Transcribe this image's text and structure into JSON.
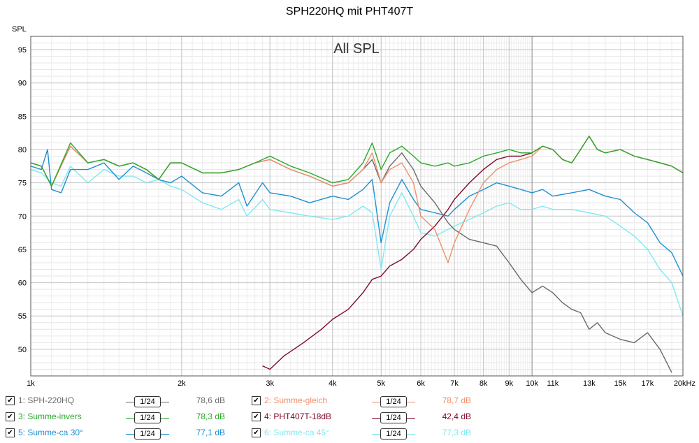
{
  "chart_data": {
    "type": "line",
    "title": "SPH220HQ mit PHT407T",
    "annotation": "All SPL",
    "ylabel": "SPL",
    "xlabel": "",
    "x_scale": "log",
    "xlim": [
      1000,
      20000
    ],
    "ylim": [
      46,
      97
    ],
    "grid": true,
    "y_ticks": [
      95,
      90,
      85,
      80,
      75,
      70,
      65,
      60,
      55,
      50
    ],
    "x_ticks": [
      {
        "v": 1000,
        "label": "1k"
      },
      {
        "v": 2000,
        "label": "2k"
      },
      {
        "v": 3000,
        "label": "3k"
      },
      {
        "v": 4000,
        "label": "4k"
      },
      {
        "v": 5000,
        "label": "5k"
      },
      {
        "v": 6000,
        "label": "6k"
      },
      {
        "v": 7000,
        "label": "7k"
      },
      {
        "v": 8000,
        "label": "8k"
      },
      {
        "v": 9000,
        "label": "9k"
      },
      {
        "v": 10000,
        "label": "10k"
      },
      {
        "v": 11000,
        "label": "11k"
      },
      {
        "v": 13000,
        "label": "13k"
      },
      {
        "v": 15000,
        "label": "15k"
      },
      {
        "v": 17000,
        "label": "17k"
      },
      {
        "v": 20000,
        "label": "20kHz"
      }
    ],
    "series": [
      {
        "name": "1: SPH-220HQ",
        "color": "#6a6a6a",
        "legend_value": "78,6 dB",
        "smoothing": "1/24",
        "points": [
          [
            1000,
            78
          ],
          [
            1050,
            77.5
          ],
          [
            1100,
            74.5
          ],
          [
            1200,
            80.5
          ],
          [
            1300,
            78
          ],
          [
            1400,
            78.5
          ],
          [
            1500,
            77.5
          ],
          [
            1600,
            78
          ],
          [
            1700,
            77
          ],
          [
            1800,
            75.5
          ],
          [
            1900,
            78
          ],
          [
            2000,
            78
          ],
          [
            2200,
            76.5
          ],
          [
            2400,
            76.5
          ],
          [
            2600,
            77
          ],
          [
            2800,
            78
          ],
          [
            3000,
            78.5
          ],
          [
            3300,
            77
          ],
          [
            3600,
            76
          ],
          [
            4000,
            74.5
          ],
          [
            4300,
            75
          ],
          [
            4600,
            77
          ],
          [
            4800,
            78.5
          ],
          [
            5000,
            75
          ],
          [
            5200,
            77.5
          ],
          [
            5500,
            79.5
          ],
          [
            5800,
            77
          ],
          [
            6000,
            74.5
          ],
          [
            6400,
            72
          ],
          [
            6800,
            69
          ],
          [
            7000,
            68
          ],
          [
            7500,
            66.5
          ],
          [
            8000,
            66
          ],
          [
            8500,
            65.5
          ],
          [
            9000,
            63
          ],
          [
            9500,
            60.5
          ],
          [
            10000,
            58.5
          ],
          [
            10500,
            59.5
          ],
          [
            11000,
            58.5
          ],
          [
            11500,
            57
          ],
          [
            12000,
            56
          ],
          [
            12500,
            55.5
          ],
          [
            13000,
            53
          ],
          [
            13500,
            54
          ],
          [
            14000,
            52.5
          ],
          [
            15000,
            51.5
          ],
          [
            16000,
            51
          ],
          [
            17000,
            52.5
          ],
          [
            18000,
            50
          ],
          [
            19000,
            46.5
          ]
        ]
      },
      {
        "name": "2: Summe-gleich",
        "color": "#f0906a",
        "legend_value": "78,7 dB",
        "smoothing": "1/24",
        "points": [
          [
            1000,
            78
          ],
          [
            1050,
            77.5
          ],
          [
            1100,
            74.5
          ],
          [
            1200,
            80.5
          ],
          [
            1300,
            78
          ],
          [
            1400,
            78.5
          ],
          [
            1500,
            77.5
          ],
          [
            1600,
            78
          ],
          [
            1700,
            77
          ],
          [
            1800,
            75.5
          ],
          [
            1900,
            78
          ],
          [
            2000,
            78
          ],
          [
            2200,
            76.5
          ],
          [
            2400,
            76.5
          ],
          [
            2600,
            77
          ],
          [
            2800,
            78
          ],
          [
            3000,
            78.5
          ],
          [
            3300,
            77
          ],
          [
            3600,
            76
          ],
          [
            4000,
            74.5
          ],
          [
            4300,
            75
          ],
          [
            4600,
            77
          ],
          [
            4800,
            79.5
          ],
          [
            5000,
            75
          ],
          [
            5200,
            77
          ],
          [
            5500,
            78
          ],
          [
            5800,
            75
          ],
          [
            6000,
            70
          ],
          [
            6400,
            68
          ],
          [
            6800,
            63
          ],
          [
            7000,
            66
          ],
          [
            7500,
            71
          ],
          [
            8000,
            75
          ],
          [
            8500,
            77
          ],
          [
            9000,
            78
          ],
          [
            9500,
            78.5
          ],
          [
            10000,
            79
          ],
          [
            10500,
            80.5
          ],
          [
            11000,
            80
          ],
          [
            11500,
            78.5
          ],
          [
            12000,
            78
          ],
          [
            12500,
            80
          ],
          [
            13000,
            82
          ],
          [
            13500,
            80
          ],
          [
            14000,
            79.5
          ],
          [
            15000,
            80
          ],
          [
            16000,
            79
          ],
          [
            17000,
            78.5
          ],
          [
            18000,
            78
          ],
          [
            19000,
            77.5
          ],
          [
            20000,
            76.5
          ]
        ]
      },
      {
        "name": "3: Summe-invers",
        "color": "#2aaa2a",
        "legend_value": "78,3 dB",
        "smoothing": "1/24",
        "points": [
          [
            1000,
            78
          ],
          [
            1050,
            77.5
          ],
          [
            1100,
            74.5
          ],
          [
            1200,
            81
          ],
          [
            1300,
            78
          ],
          [
            1400,
            78.5
          ],
          [
            1500,
            77.5
          ],
          [
            1600,
            78
          ],
          [
            1700,
            77
          ],
          [
            1800,
            75.5
          ],
          [
            1900,
            78
          ],
          [
            2000,
            78
          ],
          [
            2200,
            76.5
          ],
          [
            2400,
            76.5
          ],
          [
            2600,
            77
          ],
          [
            2800,
            78
          ],
          [
            3000,
            79
          ],
          [
            3300,
            77.5
          ],
          [
            3600,
            76.5
          ],
          [
            4000,
            75
          ],
          [
            4300,
            75.5
          ],
          [
            4600,
            78
          ],
          [
            4800,
            81
          ],
          [
            5000,
            77
          ],
          [
            5200,
            79.5
          ],
          [
            5500,
            80.5
          ],
          [
            5800,
            79
          ],
          [
            6000,
            78
          ],
          [
            6400,
            77.5
          ],
          [
            6800,
            78
          ],
          [
            7000,
            77.5
          ],
          [
            7500,
            78
          ],
          [
            8000,
            79
          ],
          [
            8500,
            79.5
          ],
          [
            9000,
            80
          ],
          [
            9500,
            79.5
          ],
          [
            10000,
            79.5
          ],
          [
            10500,
            80.5
          ],
          [
            11000,
            80
          ],
          [
            11500,
            78.5
          ],
          [
            12000,
            78
          ],
          [
            12500,
            80
          ],
          [
            13000,
            82
          ],
          [
            13500,
            80
          ],
          [
            14000,
            79.5
          ],
          [
            15000,
            80
          ],
          [
            16000,
            79
          ],
          [
            17000,
            78.5
          ],
          [
            18000,
            78
          ],
          [
            19000,
            77.5
          ],
          [
            20000,
            76.5
          ]
        ]
      },
      {
        "name": "4: PHT407T-18dB",
        "color": "#800a2a",
        "legend_value": "42,4 dB",
        "smoothing": "1/24",
        "points": [
          [
            2900,
            47.5
          ],
          [
            3000,
            47
          ],
          [
            3200,
            49
          ],
          [
            3500,
            51
          ],
          [
            3800,
            53
          ],
          [
            4000,
            54.5
          ],
          [
            4300,
            56
          ],
          [
            4600,
            58.5
          ],
          [
            4800,
            60.5
          ],
          [
            5000,
            61
          ],
          [
            5200,
            62.5
          ],
          [
            5500,
            63.5
          ],
          [
            5800,
            65
          ],
          [
            6000,
            66.5
          ],
          [
            6400,
            68.5
          ],
          [
            6800,
            71
          ],
          [
            7000,
            72.5
          ],
          [
            7500,
            75
          ],
          [
            8000,
            77
          ],
          [
            8500,
            78.5
          ],
          [
            9000,
            79
          ],
          [
            9500,
            79
          ],
          [
            10000,
            79.5
          ],
          [
            10500,
            80.5
          ],
          [
            11000,
            80
          ],
          [
            11500,
            78.5
          ],
          [
            12000,
            78
          ],
          [
            12500,
            80
          ],
          [
            13000,
            82
          ],
          [
            13500,
            80
          ],
          [
            14000,
            79.5
          ],
          [
            15000,
            80
          ],
          [
            16000,
            79
          ],
          [
            17000,
            78.5
          ],
          [
            18000,
            78
          ],
          [
            19000,
            77.5
          ],
          [
            20000,
            76.5
          ]
        ]
      },
      {
        "name": "5: Summe-ca 30°",
        "color": "#2090d0",
        "legend_value": "77,1 dB",
        "smoothing": "1/24",
        "points": [
          [
            1000,
            77.5
          ],
          [
            1050,
            77
          ],
          [
            1080,
            80
          ],
          [
            1100,
            74
          ],
          [
            1150,
            73.5
          ],
          [
            1200,
            77
          ],
          [
            1300,
            77
          ],
          [
            1400,
            78
          ],
          [
            1500,
            75.5
          ],
          [
            1600,
            77.5
          ],
          [
            1700,
            76.5
          ],
          [
            1800,
            75.5
          ],
          [
            1900,
            75
          ],
          [
            2000,
            76
          ],
          [
            2200,
            73.5
          ],
          [
            2400,
            73
          ],
          [
            2600,
            75
          ],
          [
            2700,
            71.5
          ],
          [
            2900,
            75
          ],
          [
            3000,
            73.5
          ],
          [
            3300,
            73
          ],
          [
            3600,
            72
          ],
          [
            4000,
            73
          ],
          [
            4300,
            72.5
          ],
          [
            4600,
            74
          ],
          [
            4800,
            75.5
          ],
          [
            5000,
            66
          ],
          [
            5200,
            72
          ],
          [
            5500,
            75.5
          ],
          [
            5800,
            72.5
          ],
          [
            6000,
            71
          ],
          [
            6400,
            70.5
          ],
          [
            6800,
            70
          ],
          [
            7000,
            71
          ],
          [
            7500,
            73
          ],
          [
            8000,
            74
          ],
          [
            8500,
            75
          ],
          [
            9000,
            74.5
          ],
          [
            9500,
            74
          ],
          [
            10000,
            73.5
          ],
          [
            10500,
            74
          ],
          [
            11000,
            73
          ],
          [
            12000,
            73.5
          ],
          [
            13000,
            74
          ],
          [
            14000,
            73
          ],
          [
            15000,
            72.5
          ],
          [
            16000,
            70.5
          ],
          [
            17000,
            69
          ],
          [
            18000,
            66
          ],
          [
            19000,
            64.5
          ],
          [
            20000,
            61
          ]
        ]
      },
      {
        "name": "6: Summe-ca 45°",
        "color": "#80e8f0",
        "legend_value": "77,3 dB",
        "smoothing": "1/24",
        "points": [
          [
            1000,
            77
          ],
          [
            1050,
            76.5
          ],
          [
            1100,
            75
          ],
          [
            1150,
            74.5
          ],
          [
            1200,
            77.5
          ],
          [
            1300,
            75
          ],
          [
            1400,
            77
          ],
          [
            1500,
            76
          ],
          [
            1600,
            76
          ],
          [
            1700,
            75
          ],
          [
            1800,
            75.5
          ],
          [
            1900,
            74.5
          ],
          [
            2000,
            74
          ],
          [
            2200,
            72
          ],
          [
            2400,
            71
          ],
          [
            2600,
            72.5
          ],
          [
            2700,
            70
          ],
          [
            2900,
            72.5
          ],
          [
            3000,
            71
          ],
          [
            3300,
            70.5
          ],
          [
            3600,
            70
          ],
          [
            4000,
            69.5
          ],
          [
            4300,
            70
          ],
          [
            4600,
            71.5
          ],
          [
            4800,
            70.5
          ],
          [
            5000,
            62
          ],
          [
            5200,
            70
          ],
          [
            5500,
            73.5
          ],
          [
            5800,
            70
          ],
          [
            6000,
            67.5
          ],
          [
            6400,
            67
          ],
          [
            6800,
            68
          ],
          [
            7000,
            68.5
          ],
          [
            7500,
            69.5
          ],
          [
            8000,
            70.5
          ],
          [
            8500,
            71.5
          ],
          [
            9000,
            72
          ],
          [
            9500,
            71
          ],
          [
            10000,
            71
          ],
          [
            10500,
            71.5
          ],
          [
            11000,
            71
          ],
          [
            12000,
            71
          ],
          [
            13000,
            70.5
          ],
          [
            14000,
            70
          ],
          [
            15000,
            68.5
          ],
          [
            16000,
            67
          ],
          [
            17000,
            65
          ],
          [
            18000,
            62
          ],
          [
            19000,
            60
          ],
          [
            20000,
            55
          ]
        ]
      }
    ]
  }
}
